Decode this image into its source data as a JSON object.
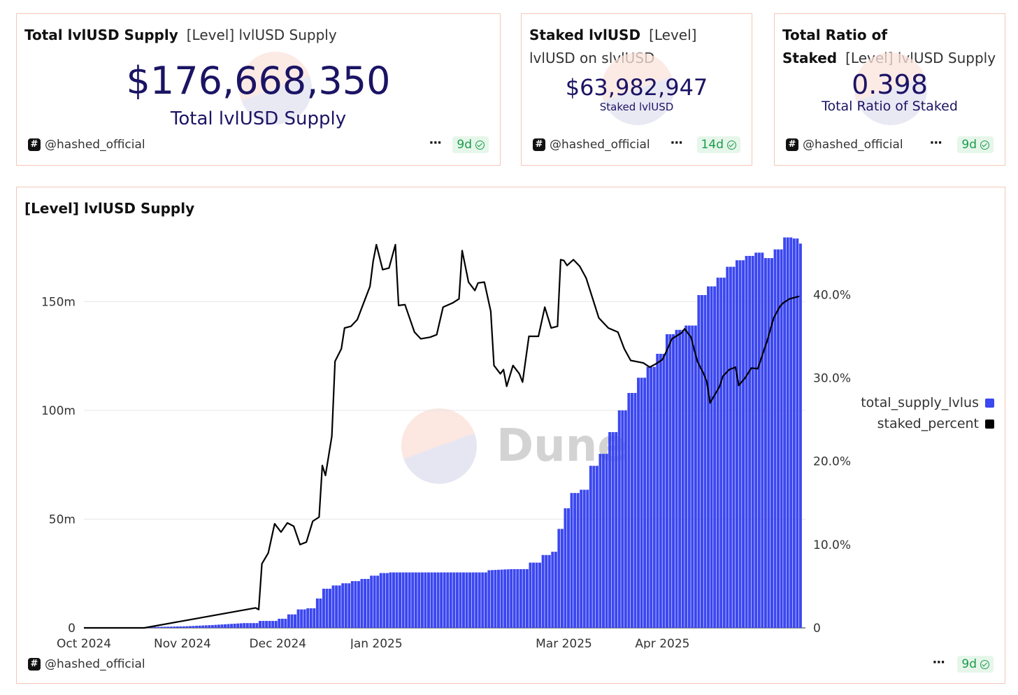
{
  "cards": [
    {
      "title": "Total lvlUSD Supply",
      "subtitle": "[Level] lvlUSD Supply",
      "value": "$176,668,350",
      "label": "Total lvlUSD Supply",
      "owner": "@hashed_official",
      "age": "9d"
    },
    {
      "title": "Staked lvlUSD",
      "subtitle": "[Level] lvlUSD on slvlUSD",
      "value": "$63,982,947",
      "label": "Staked lvlUSD",
      "owner": "@hashed_official",
      "age": "14d"
    },
    {
      "title": "Total Ratio of Staked",
      "subtitle": "[Level] lvlUSD Supply",
      "value": "0.398",
      "label": "Total Ratio of Staked",
      "owner": "@hashed_official",
      "age": "9d"
    }
  ],
  "main": {
    "title": "[Level] lvlUSD Supply",
    "watermark": "Dune",
    "owner": "@hashed_official",
    "age": "9d"
  },
  "colors": {
    "bars": "#3b47f0",
    "line": "#000000",
    "value_text": "#1b1464",
    "badge_bg": "#e6f6ea",
    "badge_text": "#1a9b4a",
    "card_border": "#f4c7b8"
  },
  "chart_data": {
    "type": "bar",
    "title": "[Level] lvlUSD Supply",
    "x_start": "2024-10-01",
    "x_end": "2025-05-16",
    "x_ticks": [
      "Oct 2024",
      "Nov 2024",
      "Dec 2024",
      "Jan 2025",
      "Mar 2025",
      "Apr 2025"
    ],
    "x_tick_dates": [
      "2024-10-01",
      "2024-11-01",
      "2024-12-01",
      "2025-01-01",
      "2025-03-01",
      "2025-04-01"
    ],
    "y_left": {
      "ticks": [
        "0",
        "50m",
        "100m",
        "150m"
      ],
      "tick_values": [
        0,
        50000000,
        100000000,
        150000000
      ],
      "range": [
        0,
        180000000
      ]
    },
    "y_right": {
      "ticks": [
        "0",
        "10.0%",
        "20.0%",
        "30.0%",
        "40.0%"
      ],
      "tick_values": [
        0,
        0.1,
        0.2,
        0.3,
        0.4
      ],
      "range": [
        0,
        0.47
      ]
    },
    "legend_position": "right",
    "series": [
      {
        "name": "total_supply_lvlus",
        "axis": "left",
        "type": "bar",
        "points": [
          [
            "2024-10-01",
            0
          ],
          [
            "2024-10-15",
            200000
          ],
          [
            "2024-11-01",
            700000
          ],
          [
            "2024-11-10",
            1300000
          ],
          [
            "2024-11-20",
            2200000
          ],
          [
            "2024-11-25",
            3200000
          ],
          [
            "2024-12-01",
            4200000
          ],
          [
            "2024-12-04",
            6200000
          ],
          [
            "2024-12-07",
            8500000
          ],
          [
            "2024-12-10",
            9000000
          ],
          [
            "2024-12-13",
            13500000
          ],
          [
            "2024-12-15",
            18000000
          ],
          [
            "2024-12-18",
            19500000
          ],
          [
            "2024-12-21",
            20500000
          ],
          [
            "2024-12-24",
            21500000
          ],
          [
            "2024-12-27",
            22500000
          ],
          [
            "2024-12-30",
            24000000
          ],
          [
            "2025-01-02",
            25200000
          ],
          [
            "2025-01-05",
            25500000
          ],
          [
            "2025-01-15",
            25500000
          ],
          [
            "2025-01-30",
            25500000
          ],
          [
            "2025-02-05",
            26500000
          ],
          [
            "2025-02-12",
            27000000
          ],
          [
            "2025-02-18",
            30000000
          ],
          [
            "2025-02-22",
            33500000
          ],
          [
            "2025-02-25",
            35000000
          ],
          [
            "2025-02-27",
            45500000
          ],
          [
            "2025-03-01",
            55000000
          ],
          [
            "2025-03-03",
            62000000
          ],
          [
            "2025-03-06",
            63500000
          ],
          [
            "2025-03-09",
            74500000
          ],
          [
            "2025-03-12",
            80000000
          ],
          [
            "2025-03-15",
            90000000
          ],
          [
            "2025-03-18",
            100000000
          ],
          [
            "2025-03-21",
            108000000
          ],
          [
            "2025-03-24",
            115000000
          ],
          [
            "2025-03-27",
            120000000
          ],
          [
            "2025-03-30",
            126000000
          ],
          [
            "2025-04-02",
            135000000
          ],
          [
            "2025-04-05",
            137000000
          ],
          [
            "2025-04-08",
            139000000
          ],
          [
            "2025-04-12",
            153000000
          ],
          [
            "2025-04-15",
            157000000
          ],
          [
            "2025-04-18",
            161000000
          ],
          [
            "2025-04-21",
            166000000
          ],
          [
            "2025-04-24",
            169000000
          ],
          [
            "2025-04-27",
            171000000
          ],
          [
            "2025-04-30",
            172500000
          ],
          [
            "2025-05-03",
            170000000
          ],
          [
            "2025-05-06",
            174000000
          ],
          [
            "2025-05-09",
            179500000
          ],
          [
            "2025-05-12",
            179000000
          ],
          [
            "2025-05-14",
            176668350
          ]
        ]
      },
      {
        "name": "staked_percent",
        "axis": "right",
        "type": "line",
        "points": [
          [
            "2024-10-01",
            0
          ],
          [
            "2024-10-20",
            0
          ],
          [
            "2024-11-24",
            0.024
          ],
          [
            "2024-11-25",
            0.022
          ],
          [
            "2024-11-26",
            0.077
          ],
          [
            "2024-11-28",
            0.09
          ],
          [
            "2024-11-30",
            0.125
          ],
          [
            "2024-12-02",
            0.115
          ],
          [
            "2024-12-04",
            0.126
          ],
          [
            "2024-12-06",
            0.122
          ],
          [
            "2024-12-08",
            0.1
          ],
          [
            "2024-12-10",
            0.103
          ],
          [
            "2024-12-12",
            0.128
          ],
          [
            "2024-12-14",
            0.133
          ],
          [
            "2024-12-15",
            0.195
          ],
          [
            "2024-12-16",
            0.183
          ],
          [
            "2024-12-18",
            0.23
          ],
          [
            "2024-12-19",
            0.32
          ],
          [
            "2024-12-21",
            0.335
          ],
          [
            "2024-12-22",
            0.36
          ],
          [
            "2024-12-24",
            0.362
          ],
          [
            "2024-12-26",
            0.37
          ],
          [
            "2024-12-28",
            0.39
          ],
          [
            "2024-12-30",
            0.41
          ],
          [
            "2024-12-31",
            0.44
          ],
          [
            "2025-01-01",
            0.46
          ],
          [
            "2025-01-03",
            0.43
          ],
          [
            "2025-01-05",
            0.432
          ],
          [
            "2025-01-07",
            0.46
          ],
          [
            "2025-01-08",
            0.387
          ],
          [
            "2025-01-10",
            0.388
          ],
          [
            "2025-01-13",
            0.355
          ],
          [
            "2025-01-15",
            0.347
          ],
          [
            "2025-01-18",
            0.349
          ],
          [
            "2025-01-20",
            0.352
          ],
          [
            "2025-01-22",
            0.385
          ],
          [
            "2025-01-25",
            0.39
          ],
          [
            "2025-01-27",
            0.395
          ],
          [
            "2025-01-28",
            0.453
          ],
          [
            "2025-01-30",
            0.415
          ],
          [
            "2025-02-01",
            0.405
          ],
          [
            "2025-02-02",
            0.414
          ],
          [
            "2025-02-04",
            0.415
          ],
          [
            "2025-02-06",
            0.38
          ],
          [
            "2025-02-07",
            0.315
          ],
          [
            "2025-02-09",
            0.305
          ],
          [
            "2025-02-10",
            0.31
          ],
          [
            "2025-02-11",
            0.29
          ],
          [
            "2025-02-13",
            0.315
          ],
          [
            "2025-02-15",
            0.305
          ],
          [
            "2025-02-16",
            0.295
          ],
          [
            "2025-02-18",
            0.35
          ],
          [
            "2025-02-21",
            0.35
          ],
          [
            "2025-02-23",
            0.385
          ],
          [
            "2025-02-25",
            0.36
          ],
          [
            "2025-02-27",
            0.362
          ],
          [
            "2025-02-28",
            0.442
          ],
          [
            "2025-03-01",
            0.441
          ],
          [
            "2025-03-02",
            0.435
          ],
          [
            "2025-03-04",
            0.442
          ],
          [
            "2025-03-06",
            0.434
          ],
          [
            "2025-03-08",
            0.42
          ],
          [
            "2025-03-12",
            0.372
          ],
          [
            "2025-03-15",
            0.36
          ],
          [
            "2025-03-18",
            0.355
          ],
          [
            "2025-03-20",
            0.335
          ],
          [
            "2025-03-22",
            0.321
          ],
          [
            "2025-03-26",
            0.318
          ],
          [
            "2025-03-28",
            0.313
          ],
          [
            "2025-03-30",
            0.317
          ],
          [
            "2025-04-01",
            0.322
          ],
          [
            "2025-04-02",
            0.33
          ],
          [
            "2025-04-04",
            0.347
          ],
          [
            "2025-04-07",
            0.354
          ],
          [
            "2025-04-08",
            0.359
          ],
          [
            "2025-04-10",
            0.349
          ],
          [
            "2025-04-12",
            0.32
          ],
          [
            "2025-04-14",
            0.305
          ],
          [
            "2025-04-15",
            0.295
          ],
          [
            "2025-04-16",
            0.27
          ],
          [
            "2025-04-19",
            0.29
          ],
          [
            "2025-04-20",
            0.302
          ],
          [
            "2025-04-22",
            0.31
          ],
          [
            "2025-04-24",
            0.313
          ],
          [
            "2025-04-25",
            0.291
          ],
          [
            "2025-04-27",
            0.3
          ],
          [
            "2025-04-29",
            0.312
          ],
          [
            "2025-05-01",
            0.311
          ],
          [
            "2025-05-04",
            0.345
          ],
          [
            "2025-05-06",
            0.372
          ],
          [
            "2025-05-08",
            0.386
          ],
          [
            "2025-05-09",
            0.39
          ],
          [
            "2025-05-11",
            0.395
          ],
          [
            "2025-05-14",
            0.398
          ]
        ]
      }
    ]
  }
}
